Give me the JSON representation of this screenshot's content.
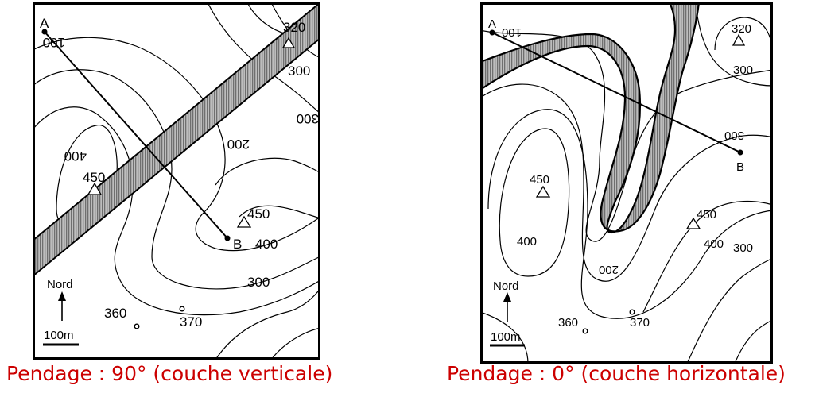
{
  "left_map": {
    "caption": "Pendage : 90° (couche verticale)",
    "point_a": "A",
    "point_b": "B",
    "north": "Nord",
    "scale": "100m",
    "contours": {
      "c100": "100",
      "c200": "200",
      "c300_a": "300",
      "c300_b": "300",
      "c300_c": "300",
      "c320": "320",
      "c360": "360",
      "c370": "370",
      "c400_a": "400",
      "c400_b": "400",
      "c450_a": "450",
      "c450_b": "450"
    }
  },
  "right_map": {
    "caption": "Pendage : 0° (couche horizontale)",
    "point_a": "A",
    "point_b": "B",
    "north": "Nord",
    "scale": "100m",
    "contours": {
      "c100": "100",
      "c200": "200",
      "c300_a": "300",
      "c300_b": "300",
      "c300_c": "300",
      "c320": "320",
      "c360": "360",
      "c370": "370",
      "c400_a": "400",
      "c400_b": "400",
      "c450_a": "450",
      "c450_b": "450"
    }
  },
  "colors": {
    "caption": "#cc0000",
    "layer_fill": "#9a9a9a",
    "lines": "#000000"
  }
}
